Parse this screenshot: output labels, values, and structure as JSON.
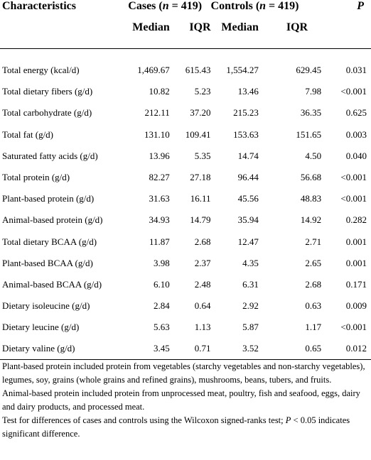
{
  "header": {
    "characteristics": "Characteristics",
    "cases_prefix": "Cases (",
    "cases_n": "n",
    "cases_suffix": " = 419)",
    "controls_prefix": "Controls (",
    "controls_n": "n",
    "controls_suffix": " = 419)",
    "p": "P",
    "median_cases": "Median",
    "iqr_cases": "IQR",
    "median_controls": "Median",
    "iqr_controls": "IQR"
  },
  "rows": [
    {
      "label": "Total energy (kcal/d)",
      "cases_median": "1,469.67",
      "cases_iqr": "615.43",
      "controls_median": "1,554.27",
      "controls_iqr": "629.45",
      "p": "0.031"
    },
    {
      "label": "Total dietary fibers (g/d)",
      "cases_median": "10.82",
      "cases_iqr": "5.23",
      "controls_median": "13.46",
      "controls_iqr": "7.98",
      "p": "<0.001"
    },
    {
      "label": "Total carbohydrate (g/d)",
      "cases_median": "212.11",
      "cases_iqr": "37.20",
      "controls_median": "215.23",
      "controls_iqr": "36.35",
      "p": "0.625"
    },
    {
      "label": "Total fat (g/d)",
      "cases_median": "131.10",
      "cases_iqr": "109.41",
      "controls_median": "153.63",
      "controls_iqr": "151.65",
      "p": "0.003"
    },
    {
      "label": "Saturated fatty acids (g/d)",
      "cases_median": "13.96",
      "cases_iqr": "5.35",
      "controls_median": "14.74",
      "controls_iqr": "4.50",
      "p": "0.040"
    },
    {
      "label": "Total protein (g/d)",
      "cases_median": "82.27",
      "cases_iqr": "27.18",
      "controls_median": "96.44",
      "controls_iqr": "56.68",
      "p": "<0.001"
    },
    {
      "label": "Plant-based protein (g/d)",
      "cases_median": "31.63",
      "cases_iqr": "16.11",
      "controls_median": "45.56",
      "controls_iqr": "48.83",
      "p": "<0.001"
    },
    {
      "label": "Animal-based protein (g/d)",
      "cases_median": "34.93",
      "cases_iqr": "14.79",
      "controls_median": "35.94",
      "controls_iqr": "14.92",
      "p": "0.282"
    },
    {
      "label": "Total dietary BCAA (g/d)",
      "cases_median": "11.87",
      "cases_iqr": "2.68",
      "controls_median": "12.47",
      "controls_iqr": "2.71",
      "p": "0.001"
    },
    {
      "label": "Plant-based BCAA (g/d)",
      "cases_median": "3.98",
      "cases_iqr": "2.37",
      "controls_median": "4.35",
      "controls_iqr": "2.65",
      "p": "0.001"
    },
    {
      "label": "Animal-based BCAA (g/d)",
      "cases_median": "6.10",
      "cases_iqr": "2.48",
      "controls_median": "6.31",
      "controls_iqr": "2.68",
      "p": "0.171"
    },
    {
      "label": "Dietary isoleucine (g/d)",
      "cases_median": "2.84",
      "cases_iqr": "0.64",
      "controls_median": "2.92",
      "controls_iqr": "0.63",
      "p": "0.009"
    },
    {
      "label": "Dietary leucine (g/d)",
      "cases_median": "5.63",
      "cases_iqr": "1.13",
      "controls_median": "5.87",
      "controls_iqr": "1.17",
      "p": "<0.001"
    },
    {
      "label": "Dietary valine (g/d)",
      "cases_median": "3.45",
      "cases_iqr": "0.71",
      "controls_median": "3.52",
      "controls_iqr": "0.65",
      "p": "0.012"
    }
  ],
  "notes": {
    "note1": "Plant-based protein included protein from vegetables (starchy vegetables and non-starchy vegetables), legumes, soy, grains (whole grains and refined grains), mushrooms, beans, tubers, and fruits.",
    "note2": "Animal-based protein included protein from unprocessed meat, poultry, fish and seafood, eggs, dairy and dairy products, and processed meat.",
    "note3_text": "Test for differences of cases and controls using the Wilcoxon signed-ranks test; ",
    "note3_p": "P",
    "note3_tail": " < 0.05 indicates significant difference."
  }
}
